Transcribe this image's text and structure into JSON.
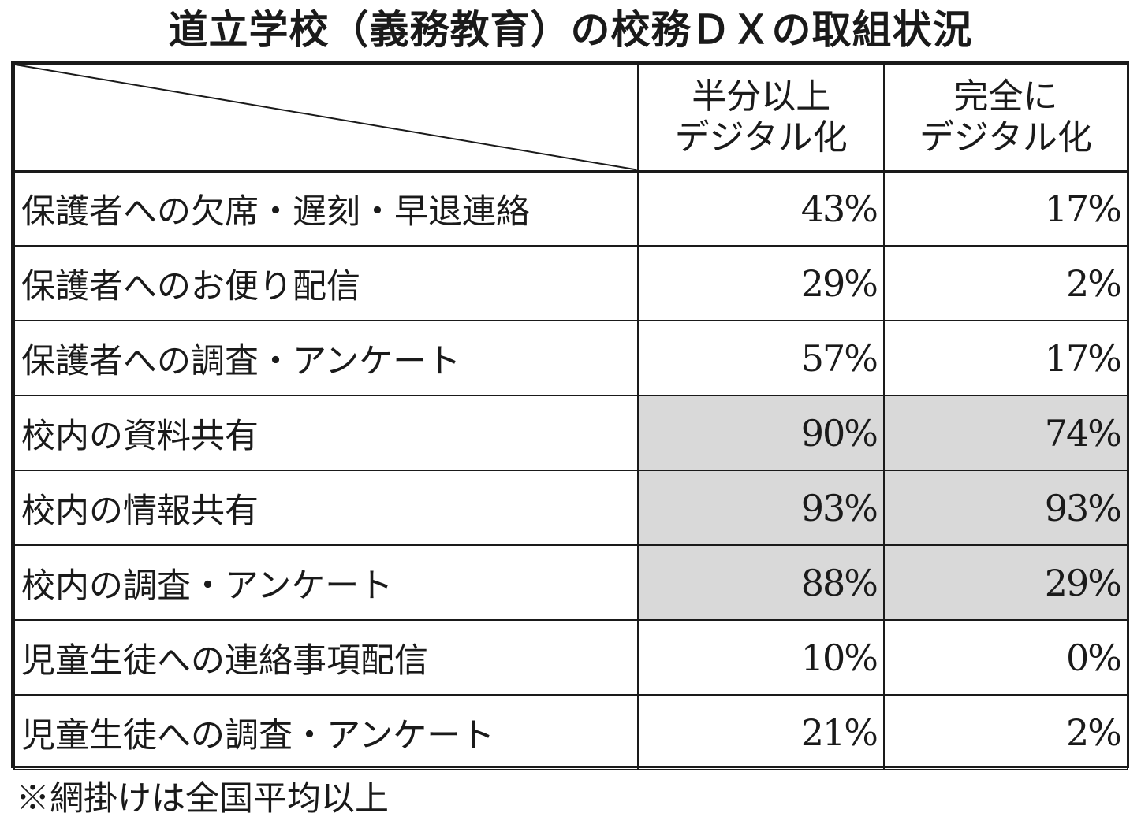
{
  "title": "道立学校（義務教育）の校務ＤＸの取組状況",
  "columns": [
    {
      "line1": "半分以上",
      "line2": "デジタル化"
    },
    {
      "line1": "完全に",
      "line2": "デジタル化"
    }
  ],
  "rows": [
    {
      "label": "保護者への欠席・遅刻・早退連絡",
      "half": "43%",
      "full": "17%"
    },
    {
      "label": "保護者へのお便り配信",
      "half": "29%",
      "full": "2%"
    },
    {
      "label": "保護者への調査・アンケート",
      "half": "57%",
      "full": "17%"
    },
    {
      "label": "校内の資料共有",
      "half": "90%",
      "full": "74%"
    },
    {
      "label": "校内の情報共有",
      "half": "93%",
      "full": "93%"
    },
    {
      "label": "校内の調査・アンケート",
      "half": "88%",
      "full": "29%"
    },
    {
      "label": "児童生徒への連絡事項配信",
      "half": "10%",
      "full": "0%"
    },
    {
      "label": "児童生徒への調査・アンケート",
      "half": "21%",
      "full": "2%"
    }
  ],
  "note": "※網掛けは全国平均以上",
  "shade_color": "#d9d9d9",
  "chart_data": {
    "type": "table",
    "title": "道立学校（義務教育）の校務ＤＸの取組状況",
    "series": [
      {
        "name": "半分以上デジタル化",
        "values": [
          43,
          29,
          57,
          90,
          93,
          88,
          10,
          21
        ]
      },
      {
        "name": "完全にデジタル化",
        "values": [
          17,
          2,
          17,
          74,
          93,
          29,
          0,
          2
        ]
      }
    ],
    "categories": [
      "保護者への欠席・遅刻・早退連絡",
      "保護者へのお便り配信",
      "保護者への調査・アンケート",
      "校内の資料共有",
      "校内の情報共有",
      "校内の調査・アンケート",
      "児童生徒への連絡事項配信",
      "児童生徒への調査・アンケート"
    ],
    "unit": "%",
    "shaded_rows": [
      3,
      4,
      5
    ]
  }
}
